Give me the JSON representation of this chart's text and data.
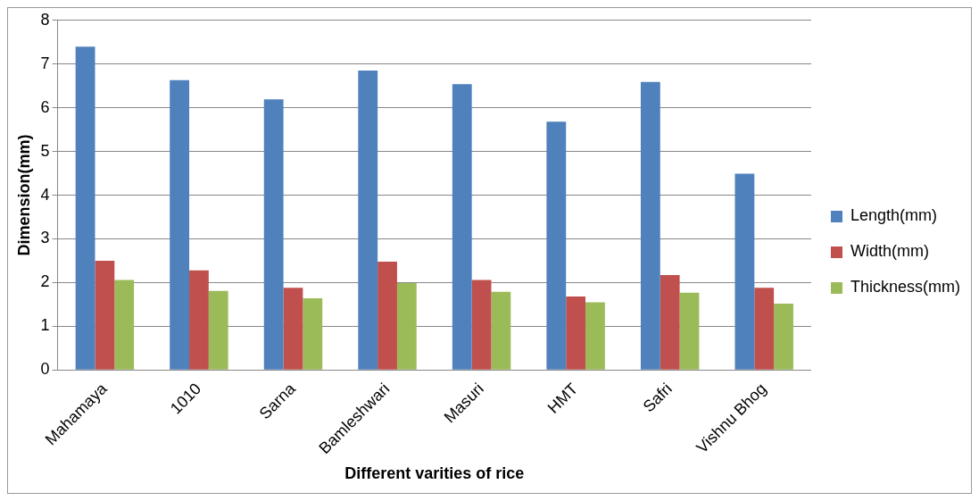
{
  "chart_data": {
    "type": "bar",
    "xlabel": "Different varities of rice",
    "ylabel": "Dimension(mm)",
    "categories": [
      "Mahamaya",
      "1010",
      "Sarna",
      "Bamleshwari",
      "Masuri",
      "HMT",
      "Safri",
      "Vishnu Bhog"
    ],
    "series": [
      {
        "name": "Length(mm)",
        "color": "#4f81bd",
        "values": [
          7.4,
          6.63,
          6.19,
          6.85,
          6.54,
          5.68,
          6.59,
          4.49
        ]
      },
      {
        "name": "Width(mm)",
        "color": "#c0504d",
        "values": [
          2.5,
          2.28,
          1.88,
          2.48,
          2.06,
          1.68,
          2.17,
          1.88
        ]
      },
      {
        "name": "Thickness(mm)",
        "color": "#9bbb59",
        "values": [
          2.06,
          1.81,
          1.64,
          1.99,
          1.79,
          1.55,
          1.77,
          1.52
        ]
      }
    ],
    "ylim": [
      0,
      8
    ],
    "yticks": [
      0,
      1,
      2,
      3,
      4,
      5,
      6,
      7,
      8
    ],
    "grid": "y",
    "legend": "right"
  }
}
